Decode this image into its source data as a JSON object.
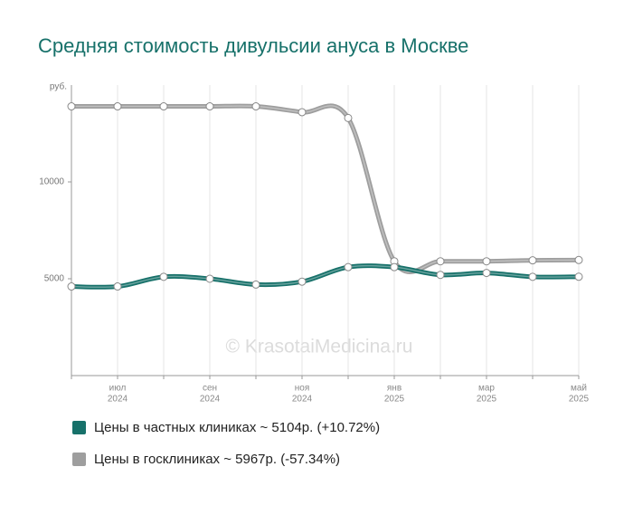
{
  "chart_data": {
    "type": "line",
    "title": "Средняя стоимость дивульсии ануса в Москве",
    "y_unit": "руб.",
    "watermark": "© KrasotaiMedicina.ru",
    "categories": [
      null,
      "июл",
      null,
      "сен",
      null,
      "ноя",
      null,
      "янв",
      null,
      "мар",
      null,
      "май"
    ],
    "category_years": [
      null,
      "2024",
      null,
      "2024",
      null,
      "2024",
      null,
      "2025",
      null,
      "2025",
      null,
      "2025"
    ],
    "series": [
      {
        "name": "Цены в частных клиниках ~ 5104р. (+10.72%)",
        "color": "#17716a",
        "values": [
          4600,
          4600,
          5100,
          5000,
          4700,
          4850,
          5600,
          5600,
          5200,
          5300,
          5100,
          5104
        ]
      },
      {
        "name": "Цены в госклиниках ~ 5967р. (-57.34%)",
        "color": "#9e9e9e",
        "values": [
          13900,
          13900,
          13900,
          13900,
          13900,
          13600,
          13300,
          5900,
          5900,
          5900,
          5950,
          5967
        ]
      }
    ],
    "ylim": [
      0,
      15000
    ],
    "yticks": [
      5000,
      10000
    ],
    "grid": true
  }
}
